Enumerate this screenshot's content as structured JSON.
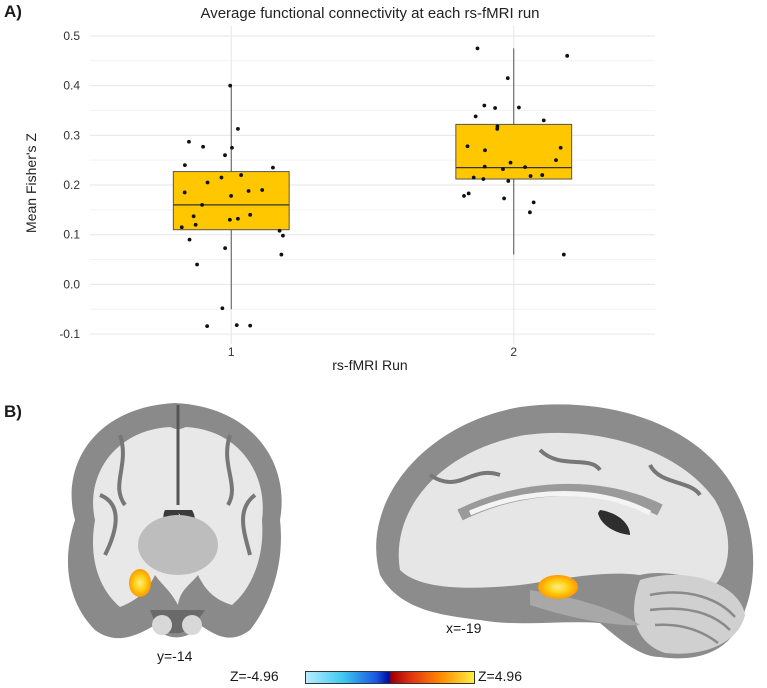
{
  "panels": {
    "a_label": "A)",
    "b_label": "B)"
  },
  "chart_data": {
    "type": "boxplot",
    "title": "Average functional connectivity at each rs-fMRI run",
    "xlabel": "rs-fMRI Run",
    "ylabel": "Mean Fisher's Z",
    "ylim": [
      -0.12,
      0.52
    ],
    "yticks": [
      -0.1,
      0.0,
      0.1,
      0.2,
      0.3,
      0.4,
      0.5
    ],
    "ytick_labels": [
      "-0.1",
      "0.0",
      "0.1",
      "0.2",
      "0.3",
      "0.4",
      "0.5"
    ],
    "categories": [
      "1",
      "2"
    ],
    "box_color": "#ffc700",
    "boxes": [
      {
        "category": "1",
        "whisker_low": -0.05,
        "q1": 0.11,
        "median": 0.16,
        "q3": 0.227,
        "whisker_high": 0.4
      },
      {
        "category": "2",
        "whisker_low": 0.06,
        "q1": 0.212,
        "median": 0.235,
        "q3": 0.322,
        "whisker_high": 0.475
      }
    ],
    "points": [
      {
        "category": "1",
        "values": [
          0.4,
          0.313,
          0.287,
          0.277,
          0.26,
          0.275,
          0.24,
          0.235,
          0.22,
          0.215,
          0.205,
          0.19,
          0.188,
          0.185,
          0.178,
          0.16,
          0.14,
          0.137,
          0.132,
          0.13,
          0.12,
          0.115,
          0.108,
          0.098,
          0.09,
          0.073,
          0.06,
          0.04,
          -0.048,
          -0.082,
          -0.083,
          -0.084
        ]
      },
      {
        "category": "2",
        "values": [
          0.475,
          0.46,
          0.415,
          0.36,
          0.356,
          0.355,
          0.338,
          0.33,
          0.318,
          0.313,
          0.278,
          0.275,
          0.27,
          0.25,
          0.245,
          0.237,
          0.236,
          0.232,
          0.22,
          0.218,
          0.215,
          0.212,
          0.208,
          0.183,
          0.178,
          0.173,
          0.165,
          0.145,
          0.06
        ]
      }
    ]
  },
  "brain": {
    "coronal_coord": "y=-14",
    "sagittal_coord": "x=-19",
    "colorbar_min": "Z=-4.96",
    "colorbar_max": "Z=4.96"
  }
}
